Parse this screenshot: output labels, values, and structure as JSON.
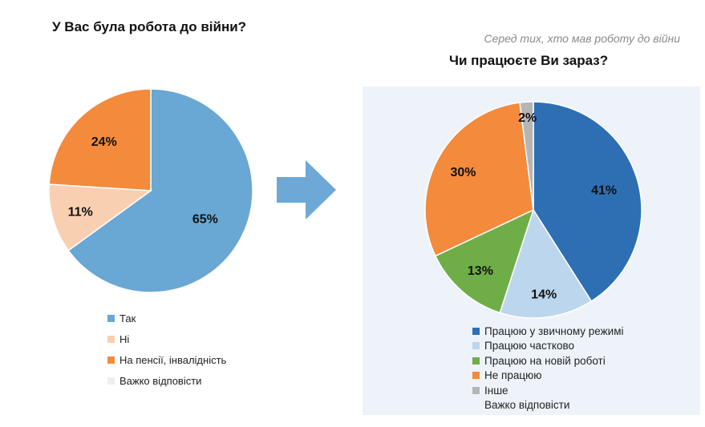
{
  "left": {
    "title": "У Вас була робота до війни?"
  },
  "right": {
    "subtitle": "Серед тих, хто мав роботу до війни",
    "title": "Чи працюєте Ви зараз?"
  },
  "chart_data": [
    {
      "type": "pie",
      "title": "У Вас була робота до війни?",
      "slices": [
        {
          "label": "Так",
          "value": 65,
          "value_label": "65%",
          "color": "#69a7d4"
        },
        {
          "label": "Ні",
          "value": 11,
          "value_label": "11%",
          "color": "#f9cfb2"
        },
        {
          "label": "На пенсії, інвалідність",
          "value": 24,
          "value_label": "24%",
          "color": "#f48a3c"
        },
        {
          "label": "Важко відповісти",
          "value": 0,
          "value_label": "",
          "color": "#eeeeee"
        }
      ],
      "legend_position": "bottom"
    },
    {
      "type": "pie",
      "subtitle": "Серед тих, хто мав роботу до війни",
      "title": "Чи працюєте Ви зараз?",
      "slices": [
        {
          "label": "Працюю у звичному режимі",
          "value": 41,
          "value_label": "41%",
          "color": "#2e6fb4"
        },
        {
          "label": "Працюю частково",
          "value": 14,
          "value_label": "14%",
          "color": "#bcd6ee"
        },
        {
          "label": "Працюю на новій роботі",
          "value": 13,
          "value_label": "13%",
          "color": "#6fae47"
        },
        {
          "label": "Не працюю",
          "value": 30,
          "value_label": "30%",
          "color": "#f48a3c"
        },
        {
          "label": "Інше",
          "value": 2,
          "value_label": "2%",
          "color": "#b5b5b5"
        },
        {
          "label": "Важко відповісти",
          "value": 0,
          "value_label": "",
          "color": "#eef3fa"
        }
      ],
      "legend_position": "bottom"
    }
  ],
  "colors": {
    "arrow": "#6ea8d6",
    "panel_background": "#eef3fa"
  },
  "icons": {
    "arrow": "right-arrow-icon"
  }
}
